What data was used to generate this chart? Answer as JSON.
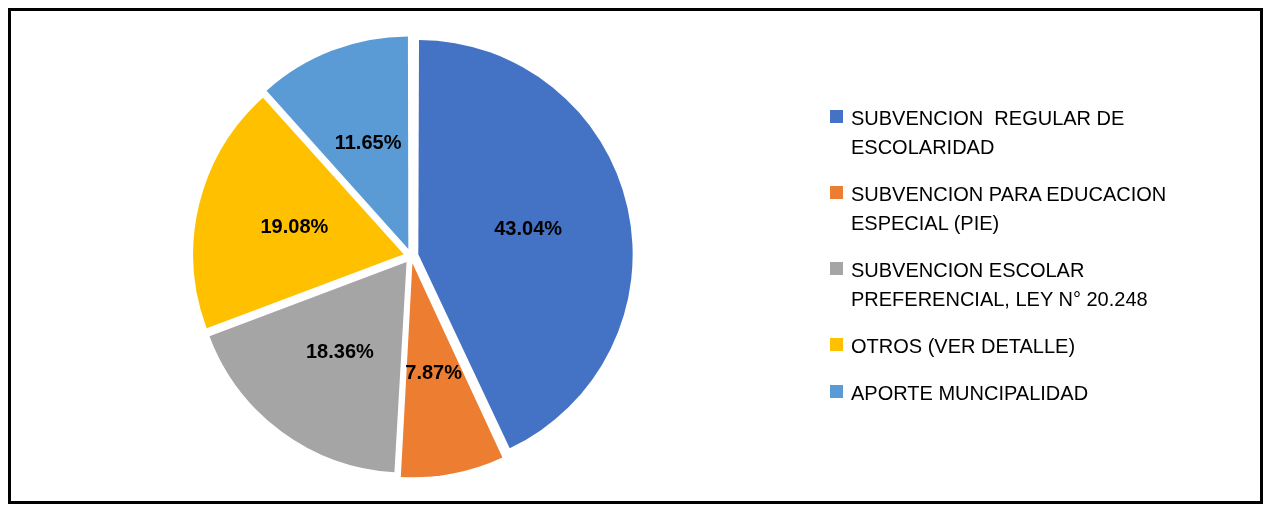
{
  "chart_data": {
    "type": "pie",
    "categories": [
      "SUBVENCION  REGULAR DE ESCOLARIDAD",
      "SUBVENCION PARA EDUCACION ESPECIAL (PIE)",
      "SUBVENCION ESCOLAR PREFERENCIAL, LEY N° 20.248",
      "OTROS (VER DETALLE)",
      "APORTE MUNCIPALIDAD"
    ],
    "values": [
      43.04,
      7.87,
      18.36,
      19.08,
      11.65
    ],
    "value_labels": [
      "43.04%",
      "7.87%",
      "18.36%",
      "19.08%",
      "11.65%"
    ],
    "colors": [
      "#4472c4",
      "#ed7d31",
      "#a5a5a5",
      "#ffc000",
      "#5b9bd5"
    ],
    "legend": "right"
  }
}
